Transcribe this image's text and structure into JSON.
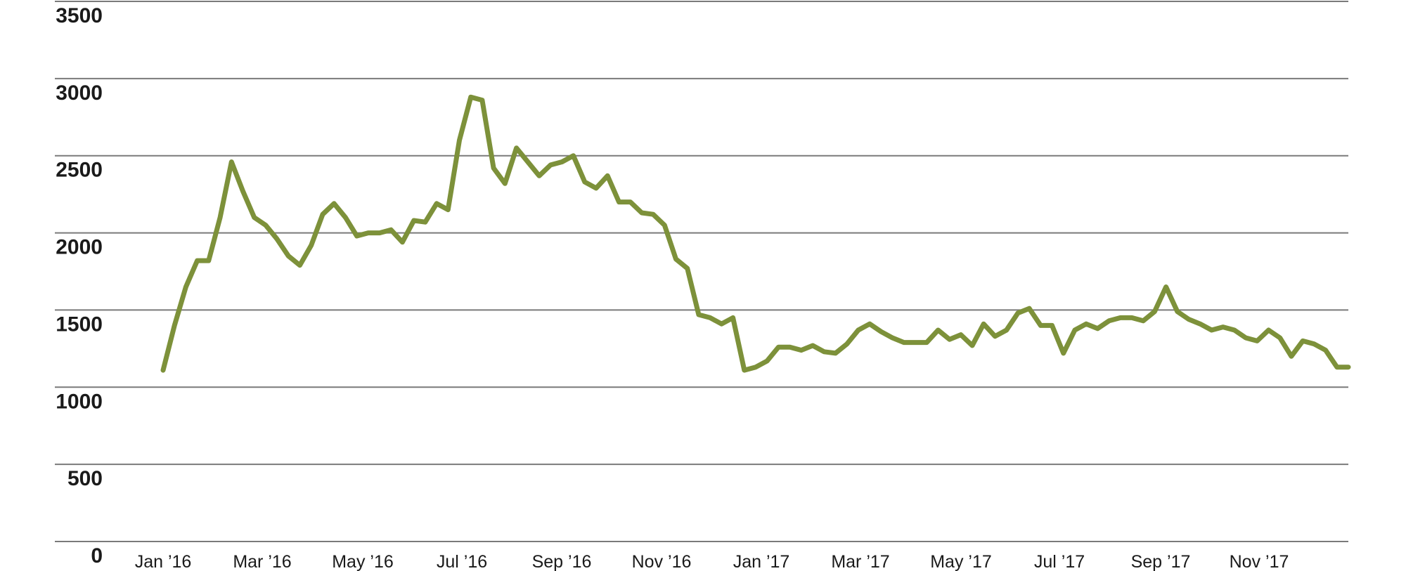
{
  "chart_data": {
    "type": "line",
    "title": "",
    "xlabel": "",
    "ylabel": "",
    "ylim": [
      0,
      3500
    ],
    "yticks": [
      0,
      500,
      1000,
      1500,
      2000,
      2500,
      3000,
      3500
    ],
    "ytick_labels": [
      "0",
      "500",
      "1000",
      "1500",
      "2000",
      "2500",
      "3000",
      "3500"
    ],
    "xtick_labels": [
      "Jan ’16",
      "Mar ’16",
      "May ’16",
      "Jul ’16",
      "Sep ’16",
      "Nov ’16",
      "Jan ’17",
      "Mar ’17",
      "May ’17",
      "Jul ’17",
      "Sep ’17",
      "Nov ’17"
    ],
    "grid": true,
    "legend": "none",
    "colors": {
      "series": "#7d913a",
      "grid": "#7a7a7a",
      "text": "#1a1a1a"
    },
    "series": [
      {
        "values": [
          1110,
          1400,
          1650,
          1820,
          1820,
          2100,
          2460,
          2270,
          2100,
          2050,
          1960,
          1850,
          1790,
          1920,
          2120,
          2190,
          2100,
          1980,
          2000,
          2000,
          2020,
          1940,
          2080,
          2070,
          2190,
          2150,
          2600,
          2880,
          2860,
          2420,
          2320,
          2550,
          2460,
          2370,
          2440,
          2460,
          2500,
          2330,
          2290,
          2370,
          2200,
          2200,
          2130,
          2120,
          2050,
          1830,
          1770,
          1470,
          1450,
          1410,
          1450,
          1110,
          1130,
          1170,
          1260,
          1260,
          1240,
          1270,
          1230,
          1220,
          1280,
          1370,
          1410,
          1360,
          1320,
          1290,
          1290,
          1290,
          1370,
          1310,
          1340,
          1270,
          1410,
          1330,
          1370,
          1480,
          1510,
          1400,
          1400,
          1220,
          1370,
          1410,
          1380,
          1430,
          1450,
          1450,
          1430,
          1490,
          1650,
          1490,
          1440,
          1410,
          1370,
          1390,
          1370,
          1320,
          1300,
          1370,
          1320,
          1200,
          1300,
          1280,
          1240,
          1130,
          1130
        ]
      }
    ]
  }
}
